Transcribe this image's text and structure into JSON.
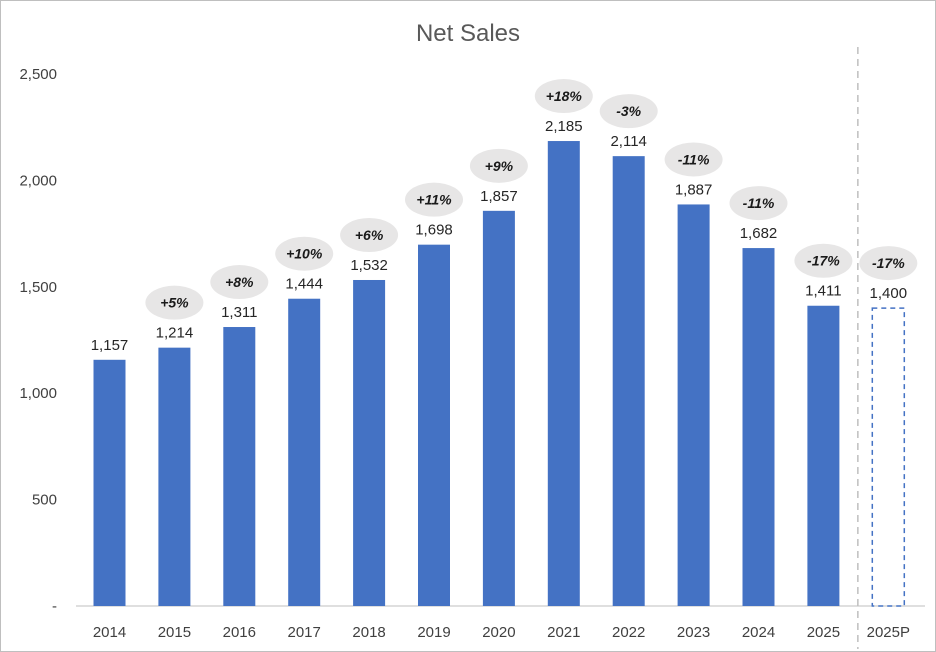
{
  "chart_data": {
    "type": "bar",
    "title": "Net Sales",
    "xlabel": "",
    "ylabel": "",
    "ylim": [
      0,
      2500
    ],
    "yticks": [
      0,
      500,
      1000,
      1500,
      2000,
      2500
    ],
    "ytick_labels": [
      "-",
      "500",
      "1,000",
      "1,500",
      "2,000",
      "2,500"
    ],
    "grid": false,
    "legend": "none",
    "categories": [
      "2014",
      "2015",
      "2016",
      "2017",
      "2018",
      "2019",
      "2020",
      "2021",
      "2022",
      "2023",
      "2024",
      "2025",
      "2025P"
    ],
    "values": [
      1157,
      1214,
      1311,
      1444,
      1532,
      1698,
      1857,
      2185,
      2114,
      1887,
      1682,
      1411,
      1400
    ],
    "value_labels": [
      "1,157",
      "1,214",
      "1,311",
      "1,444",
      "1,532",
      "1,698",
      "1,857",
      "2,185",
      "2,114",
      "1,887",
      "1,682",
      "1,411",
      "1,400"
    ],
    "change_labels": [
      "",
      "+5%",
      "+8%",
      "+10%",
      "+6%",
      "+11%",
      "+9%",
      "+18%",
      "-3%",
      "-11%",
      "-11%",
      "-17%",
      "-17%"
    ],
    "projected": [
      false,
      false,
      false,
      false,
      false,
      false,
      false,
      false,
      false,
      false,
      false,
      false,
      true
    ],
    "colors": {
      "bar": "#4472c4",
      "projected_outline": "#4472c4",
      "bubble": "#e7e6e6",
      "separator": "#bfbfbf",
      "axis": "#bfbfbf"
    }
  }
}
